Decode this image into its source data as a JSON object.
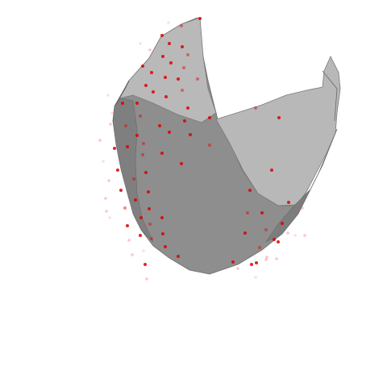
{
  "scene": {
    "background_color": "#ffffff",
    "surface_dark_color": "#8c8c8c",
    "surface_mid_color": "#999999",
    "surface_light_color": "#b7b7b7",
    "edge_color": "#555555",
    "point_color": "#dd0000"
  }
}
